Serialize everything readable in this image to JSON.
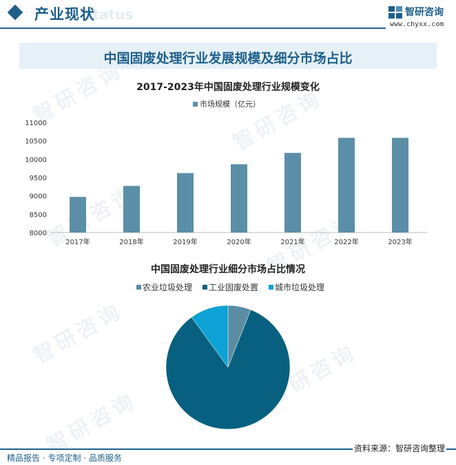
{
  "header": {
    "section_title": "产业现状",
    "ghost_text": "Status",
    "brand_name": "智研咨询",
    "brand_url": "www.chyxx.com"
  },
  "banner": {
    "title": "中国固废处理行业发展规模及细分市场占比"
  },
  "watermarks": [
    "智研咨询",
    "智研咨询",
    "智研咨询",
    "智研咨询",
    "智研咨询",
    "智研咨询",
    "智研咨询"
  ],
  "footer": {
    "left": "精品报告 · 专项定制 · 品质服务",
    "right": "资料来源：智研咨询整理"
  },
  "colors": {
    "brand": "#1d5f8a",
    "bar": "#5b8fa8"
  },
  "chart_data": [
    {
      "type": "bar",
      "title": "2017-2023年中国固废处理行业规模变化",
      "categories": [
        "2017年",
        "2018年",
        "2019年",
        "2020年",
        "2021年",
        "2022年",
        "2023年"
      ],
      "series": [
        {
          "name": "市场规模（亿元）",
          "values": [
            8970,
            9270,
            9620,
            9860,
            10170,
            10580,
            10580
          ],
          "color": "#5b8fa8"
        }
      ],
      "yticks": [
        "8000",
        "8500",
        "9000",
        "9500",
        "10000",
        "10500",
        "11000"
      ],
      "ylim": [
        8000,
        11000
      ],
      "legend": "top",
      "grid": false
    },
    {
      "type": "pie",
      "title": "中国固废处理行业细分市场占比情况",
      "labels": [
        "农业垃圾处理",
        "工业固废处置",
        "城市垃圾处理"
      ],
      "values": [
        6,
        84,
        10
      ],
      "colors": [
        "#5a8da4",
        "#07607f",
        "#0ea2d6"
      ],
      "legend": "top"
    }
  ]
}
